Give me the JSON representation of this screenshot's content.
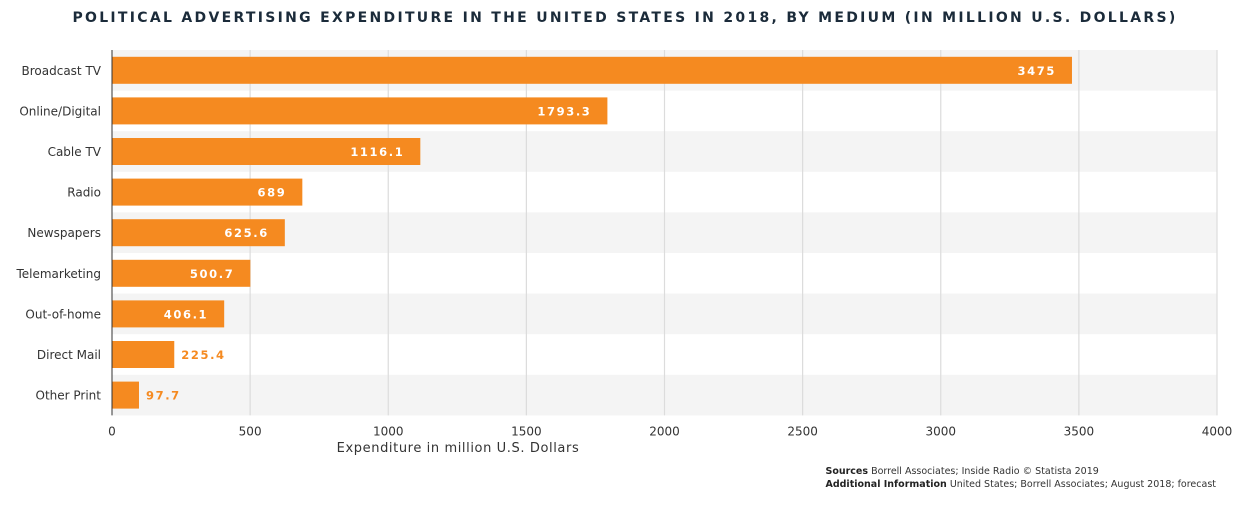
{
  "chart_data": {
    "type": "bar",
    "orientation": "horizontal",
    "title": "POLITICAL ADVERTISING EXPENDITURE IN THE UNITED STATES IN 2018, BY MEDIUM (IN MILLION U.S. DOLLARS)",
    "xlabel": "Expenditure in million U.S. Dollars",
    "ylabel": "",
    "categories": [
      "Broadcast TV",
      "Online/Digital",
      "Cable TV",
      "Radio",
      "Newspapers",
      "Telemarketing",
      "Out-of-home",
      "Direct Mail",
      "Other Print"
    ],
    "values": [
      3475,
      1793.3,
      1116.1,
      689,
      625.6,
      500.7,
      406.1,
      225.4,
      97.7
    ],
    "value_labels": [
      "3475",
      "1793.3",
      "1116.1",
      "689",
      "625.6",
      "500.7",
      "406.1",
      "225.4",
      "97.7"
    ],
    "xlim": [
      0,
      4000
    ],
    "xticks": [
      0,
      500,
      1000,
      1500,
      2000,
      2500,
      3000,
      3500,
      4000
    ],
    "grid": true,
    "legend": "none",
    "bar_color": "#f58a20",
    "alt_row_color": "#f4f4f4"
  },
  "footer": {
    "sources_label": "Sources",
    "sources_text": "Borrell Associates; Inside Radio",
    "copyright": "© Statista 2019",
    "additional_label": "Additional Information",
    "additional_text": "United States; Borrell Associates; August 2018; forecast"
  }
}
